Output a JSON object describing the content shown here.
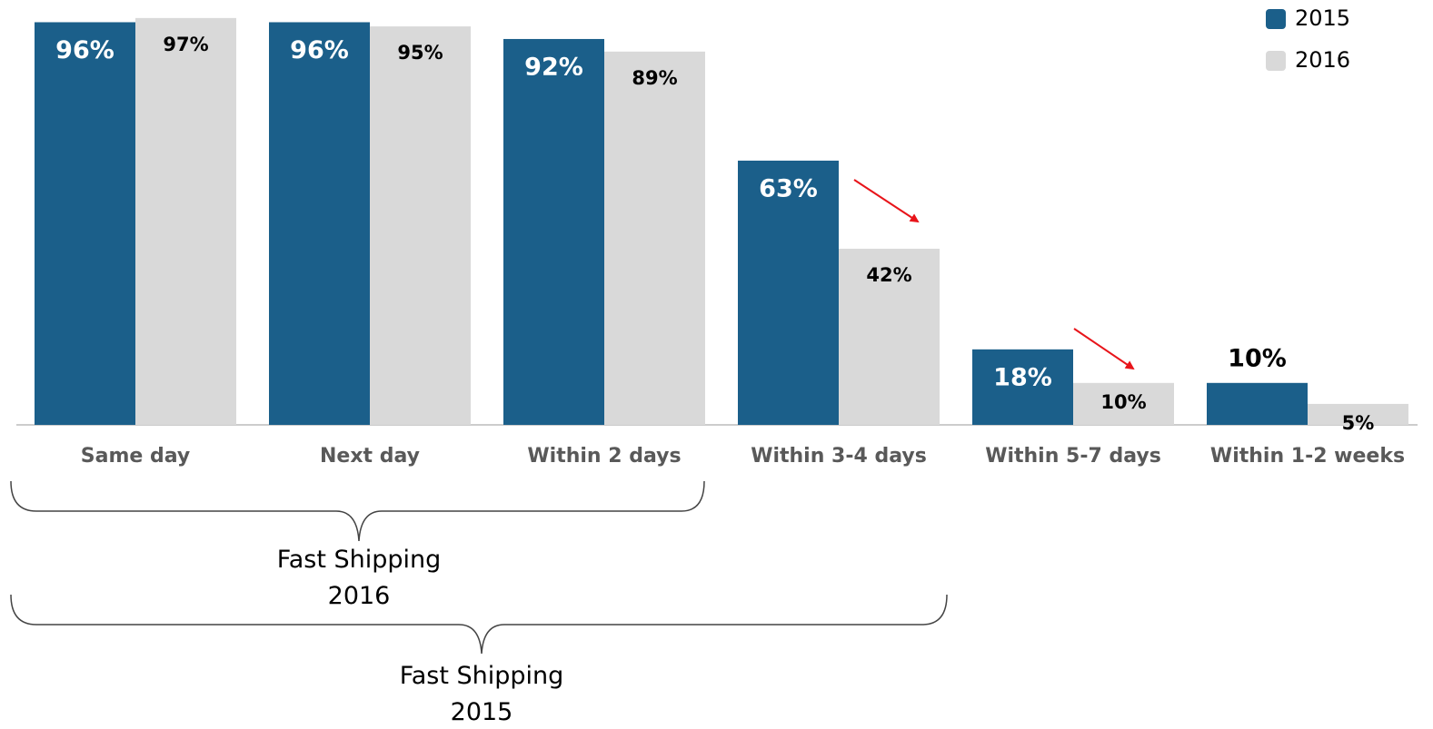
{
  "chart_data": {
    "type": "bar",
    "categories": [
      "Same day",
      "Next day",
      "Within 2 days",
      "Within 3-4 days",
      "Within 5-7 days",
      "Within 1-2 weeks"
    ],
    "series": [
      {
        "name": "2015",
        "color": "#1b5f8a",
        "values": [
          96,
          96,
          92,
          63,
          18,
          10
        ],
        "value_labels": [
          "96%",
          "96%",
          "92%",
          "63%",
          "18%",
          "10%"
        ]
      },
      {
        "name": "2016",
        "color": "#d9d9d9",
        "values": [
          97,
          95,
          89,
          42,
          10,
          5
        ],
        "value_labels": [
          "97%",
          "95%",
          "89%",
          "42%",
          "10%",
          "5%"
        ]
      }
    ],
    "ylim": [
      0,
      100
    ],
    "legend": "top-right",
    "annotations": [
      "Fast Shipping 2016",
      "Fast Shipping 2015"
    ]
  }
}
